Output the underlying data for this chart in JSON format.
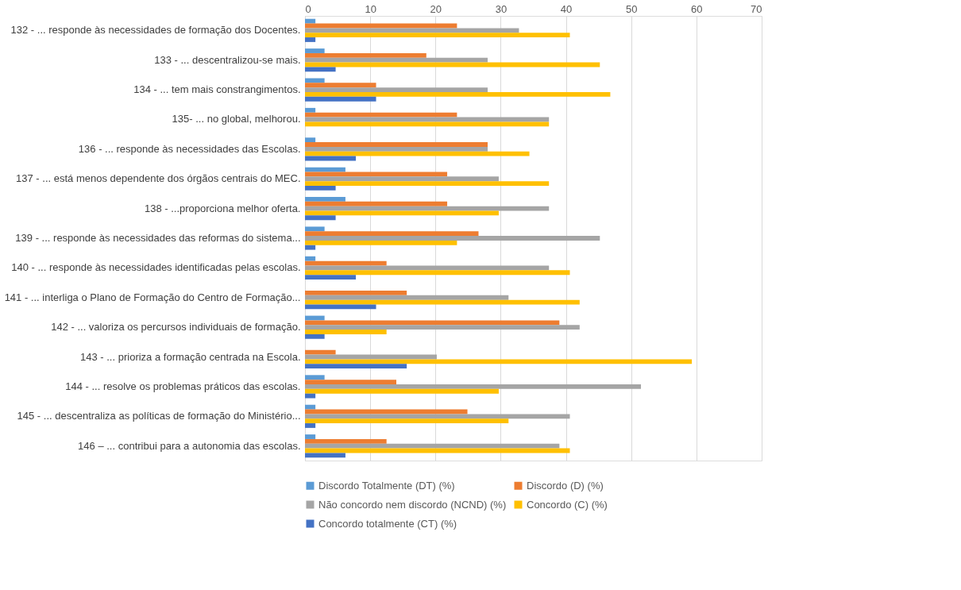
{
  "chart_data": {
    "type": "bar",
    "orientation": "horizontal",
    "categories": [
      "132 - ... responde às necessidades de formação dos Docentes.",
      "133 - ... descentralizou-se mais.",
      "134 - ... tem mais constrangimentos.",
      "135-  ... no global, melhorou.",
      "136 - ... responde às necessidades das Escolas.",
      "137 - ... está menos dependente dos órgãos centrais do MEC.",
      "138 - ...proporciona melhor oferta.",
      "139 - ... responde às necessidades das reformas do sistema...",
      "140 - ... responde às necessidades identificadas pelas escolas.",
      "141 - ... interliga o Plano de Formação do Centro de Formação...",
      "142 - ... valoriza os percursos individuais de formação.",
      "143 - ... prioriza a formação centrada na Escola.",
      "144 - ... resolve os problemas práticos das escolas.",
      "145 - ... descentraliza as políticas de formação do Ministério...",
      "146 – ... contribui para a autonomia das escolas."
    ],
    "series": [
      {
        "name": "Discordo  Totalmente    (DT)  (%)",
        "color": "#5b9bd5",
        "values": [
          1.6,
          3.0,
          3.0,
          1.6,
          1.6,
          6.2,
          6.2,
          3.0,
          1.6,
          0,
          3.0,
          0,
          3.0,
          1.6,
          1.6
        ]
      },
      {
        "name": "Discordo (D) (%)",
        "color": "#ed7d31",
        "values": [
          23.3,
          18.6,
          10.9,
          23.3,
          28.0,
          21.8,
          21.8,
          26.6,
          12.5,
          15.6,
          39.0,
          4.7,
          14.0,
          24.9,
          12.5
        ]
      },
      {
        "name": "Não concordo nem discordo (NCND) (%)",
        "color": "#a5a5a5",
        "values": [
          32.8,
          28.0,
          28.0,
          37.4,
          28.0,
          29.7,
          37.4,
          45.2,
          37.4,
          31.2,
          42.1,
          20.2,
          51.5,
          40.6,
          39.0
        ]
      },
      {
        "name": "Concordo (C) (%)",
        "color": "#ffc000",
        "values": [
          40.6,
          45.2,
          46.8,
          37.4,
          34.4,
          37.4,
          29.7,
          23.3,
          40.6,
          42.1,
          12.5,
          59.3,
          29.7,
          31.2,
          40.6
        ]
      },
      {
        "name": "Concordo totalmente (CT) (%)",
        "color": "#4472c4",
        "values": [
          1.6,
          4.7,
          10.9,
          0,
          7.8,
          4.7,
          4.7,
          1.6,
          7.8,
          10.9,
          3.0,
          15.6,
          1.6,
          1.6,
          6.2
        ]
      }
    ],
    "xlim": [
      0,
      70
    ],
    "xticks": [
      0,
      10,
      20,
      30,
      40,
      50,
      60,
      70
    ],
    "grid": "x",
    "legend": "bottom"
  }
}
